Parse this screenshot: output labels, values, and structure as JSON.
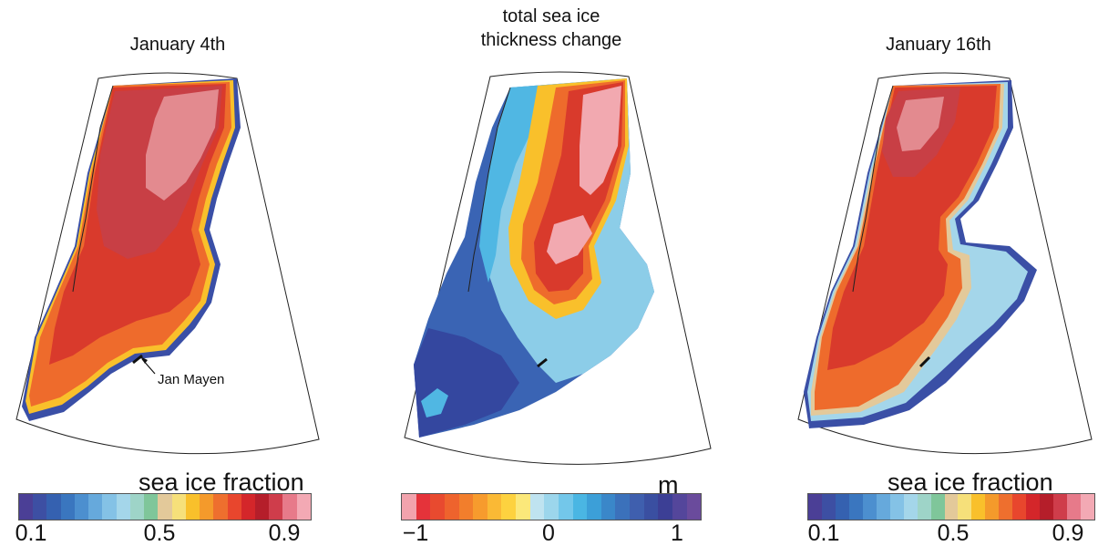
{
  "panels": [
    {
      "title": "January 4th",
      "colorbar": {
        "label": "sea ice fraction",
        "ticks": [
          "0.1",
          "0.5",
          "0.9"
        ],
        "colors": [
          "#4b3f96",
          "#3d4fa3",
          "#3561b0",
          "#3a76bf",
          "#4c8fcf",
          "#66a9dc",
          "#84c2e6",
          "#a4d6ea",
          "#9ed4c8",
          "#7fc69a",
          "#e3c99a",
          "#f6e07a",
          "#f9c02b",
          "#f49a2b",
          "#ee6f2e",
          "#e8462d",
          "#d4262a",
          "#b51e2a",
          "#cf3d4b",
          "#e77a8a",
          "#f3a9b4"
        ]
      },
      "annotation": "Jan Mayen"
    },
    {
      "title": "total sea ice\nthickness change",
      "colorbar": {
        "label": "m",
        "ticks": [
          "−1",
          "0",
          "1"
        ],
        "colors": [
          "#f2a3ad",
          "#e5333a",
          "#e84a2f",
          "#ee632d",
          "#f27e2c",
          "#f79b2d",
          "#fab935",
          "#fdd23f",
          "#fbe87a",
          "#bfe3f0",
          "#9cd6ec",
          "#73c7ea",
          "#4ab6e3",
          "#3c9fd8",
          "#3a87c9",
          "#3b71bb",
          "#3f5fae",
          "#3a4fa1",
          "#3c3f95",
          "#54469b",
          "#6a4b9c"
        ]
      }
    },
    {
      "title": "January 16th",
      "colorbar": {
        "label": "sea ice fraction",
        "ticks": [
          "0.1",
          "0.5",
          "0.9"
        ],
        "colors": [
          "#4b3f96",
          "#3d4fa3",
          "#3561b0",
          "#3a76bf",
          "#4c8fcf",
          "#66a9dc",
          "#84c2e6",
          "#a4d6ea",
          "#9ed4c8",
          "#7fc69a",
          "#e3c99a",
          "#f6e07a",
          "#f9c02b",
          "#f49a2b",
          "#ee6f2e",
          "#e8462d",
          "#d4262a",
          "#b51e2a",
          "#cf3d4b",
          "#e77a8a",
          "#f3a9b4"
        ]
      }
    }
  ],
  "map_colors": {
    "outline": "#222222",
    "edge_blue": "#3a4fa6",
    "edge_light": "#a4d6ea",
    "orange": "#ee6b2c",
    "red": "#d93a2c",
    "dark_red": "#c83f45",
    "pink": "#e38a8f",
    "light_pink": "#f2a9b0",
    "yellow": "#f9c02b",
    "light_blue": "#8ccde8",
    "blue": "#3a64b4",
    "dark_blue": "#34479f",
    "cyan": "#50b7e3"
  }
}
